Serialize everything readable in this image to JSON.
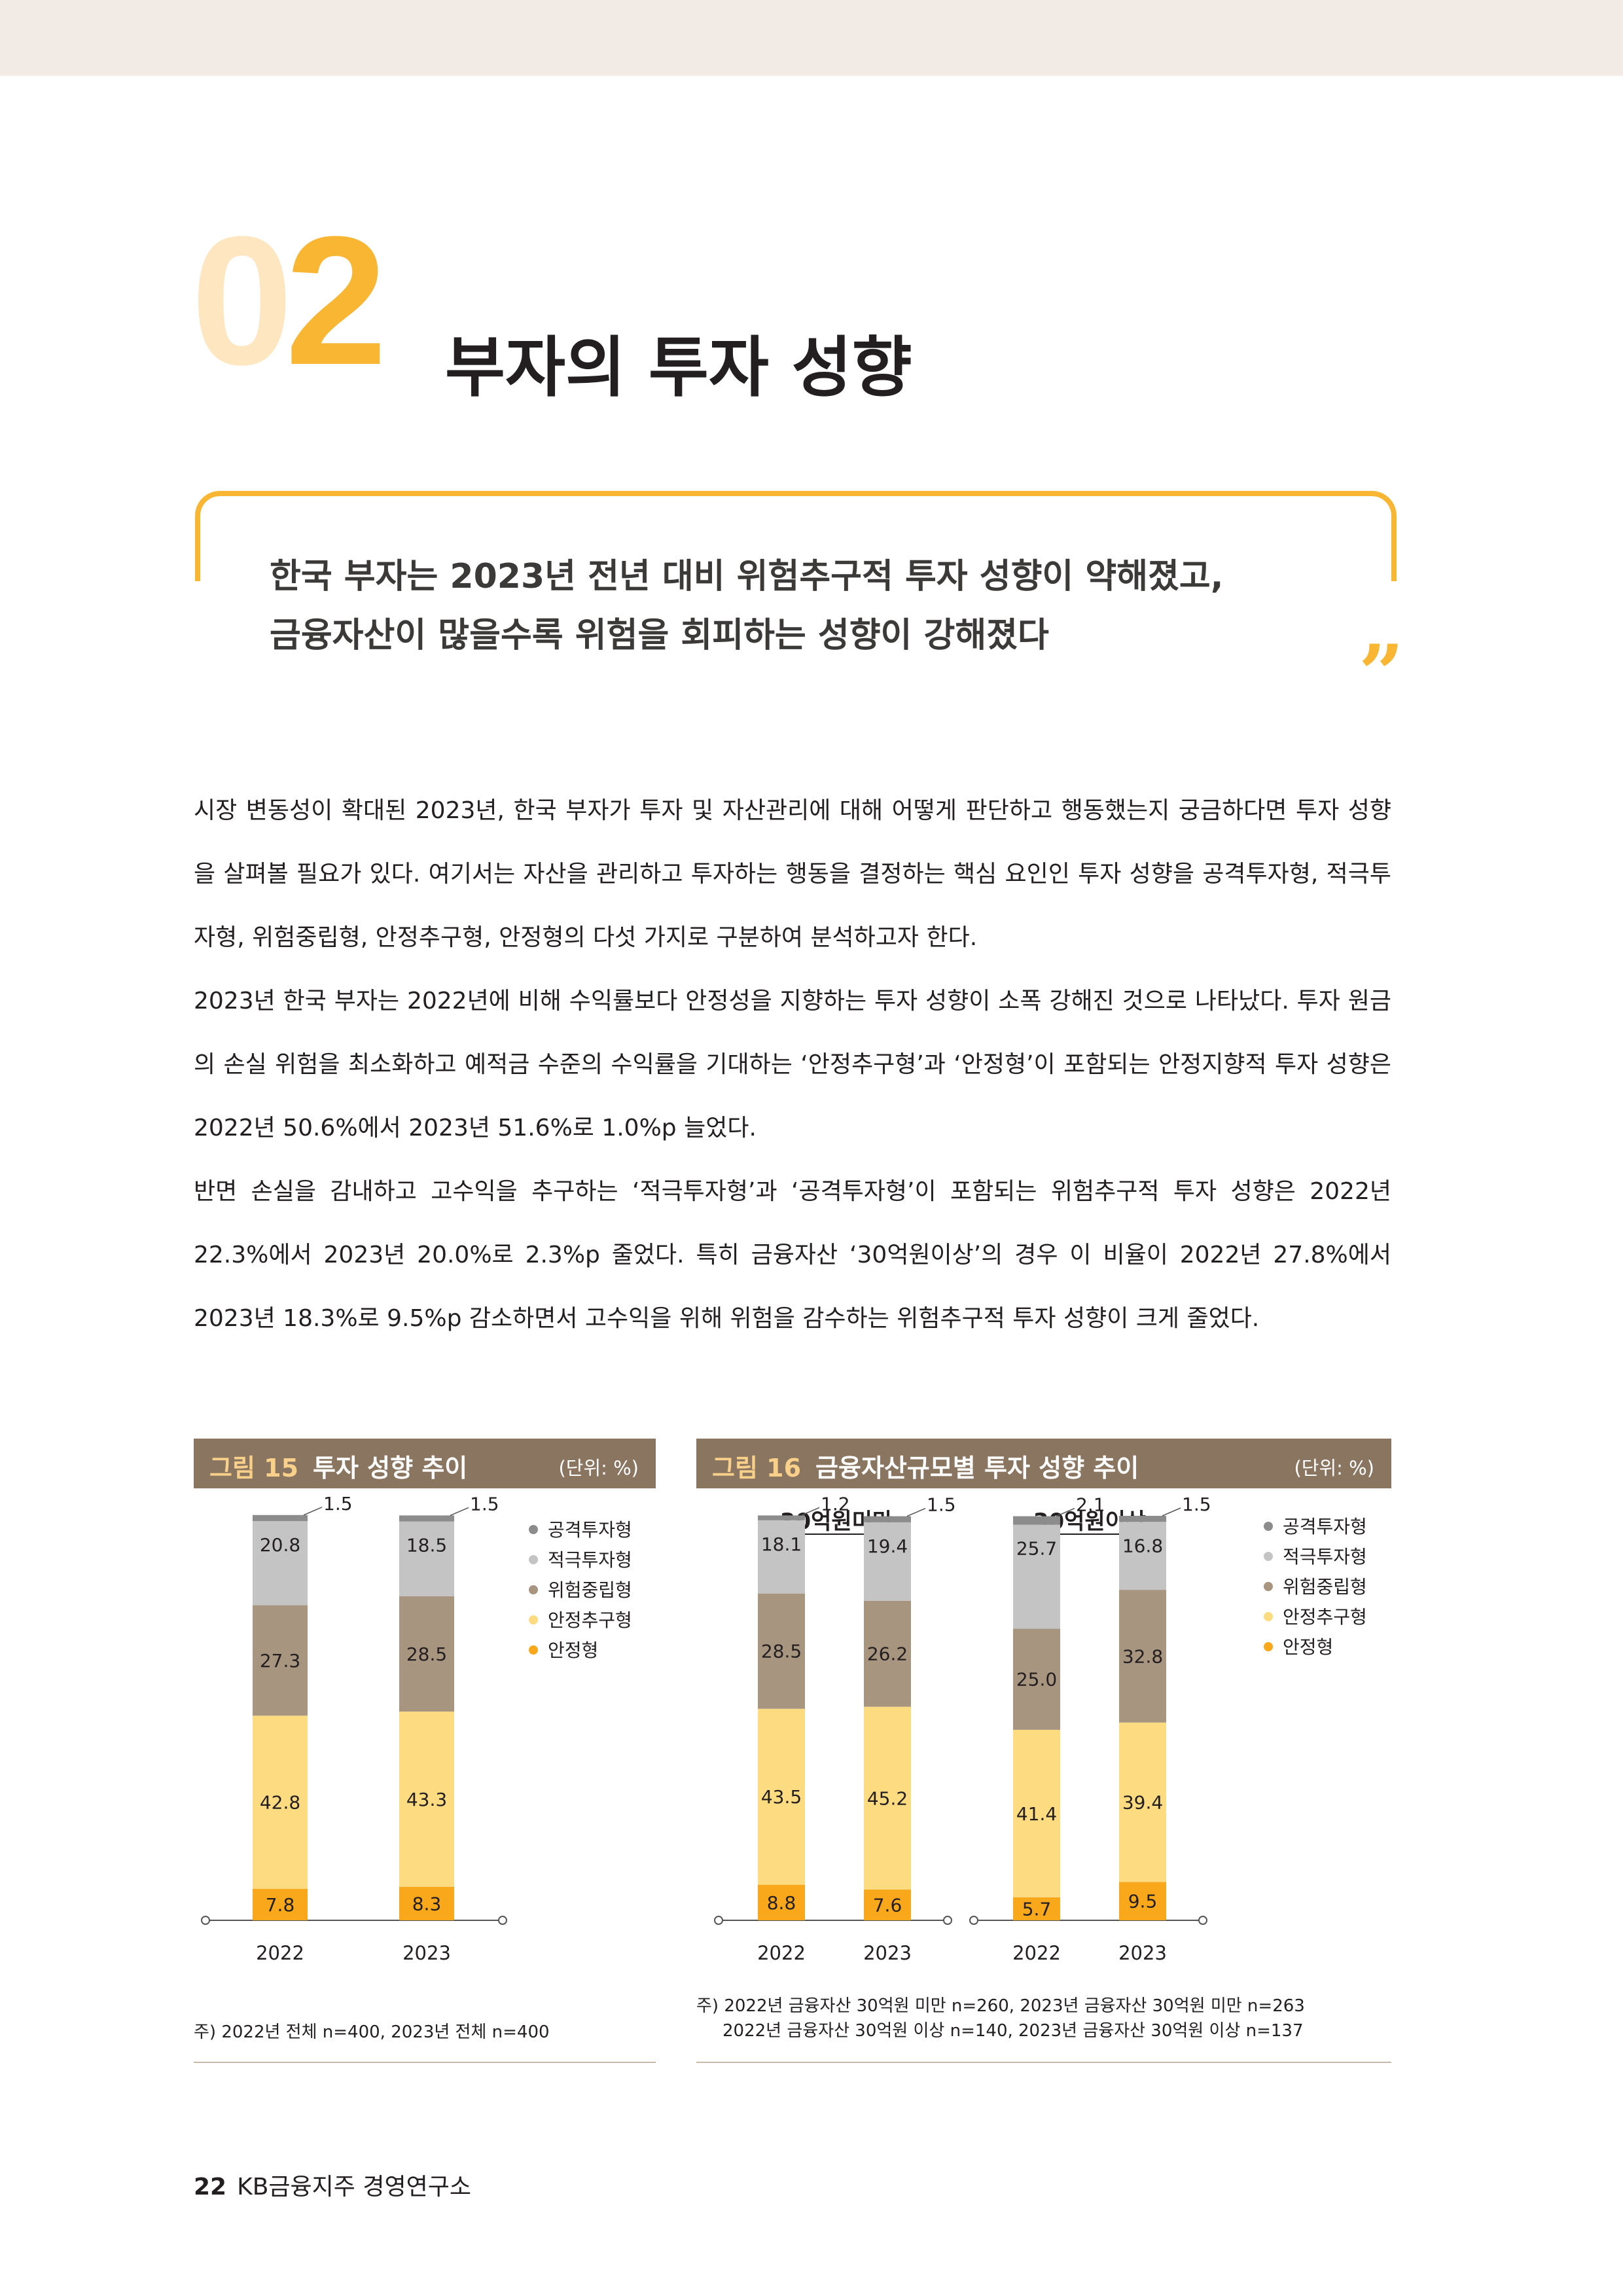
{
  "section": {
    "number_zero": "0",
    "number_two": "2",
    "title": "부자의 투자 성향"
  },
  "quote": {
    "line1": "한국 부자는 2023년 전년 대비 위험추구적 투자 성향이 약해졌고,",
    "line2": "금융자산이 많을수록 위험을 회피하는 성향이 강해졌다",
    "mark": "”"
  },
  "body": {
    "p1": "시장 변동성이 확대된 2023년, 한국 부자가 투자 및 자산관리에 대해 어떻게 판단하고 행동했는지 궁금하다면 투자 성향을 살펴볼 필요가 있다. 여기서는 자산을 관리하고 투자하는 행동을 결정하는 핵심 요인인 투자 성향을 공격투자형, 적극투자형, 위험중립형, 안정추구형, 안정형의 다섯 가지로 구분하여 분석하고자 한다.",
    "p2": "2023년 한국 부자는 2022년에 비해 수익률보다 안정성을 지향하는 투자 성향이 소폭 강해진 것으로 나타났다. 투자 원금의 손실 위험을 최소화하고 예적금 수준의 수익률을 기대하는 ‘안정추구형’과 ‘안정형’이 포함되는 안정지향적 투자 성향은 2022년 50.6%에서 2023년 51.6%로 1.0%p 늘었다.",
    "p3": "반면 손실을 감내하고 고수익을 추구하는 ‘적극투자형’과 ‘공격투자형’이 포함되는 위험추구적 투자 성향은 2022년 22.3%에서 2023년 20.0%로 2.3%p 줄었다. 특히 금융자산 ‘30억원이상’의 경우 이 비율이 2022년 27.8%에서 2023년 18.3%로 9.5%p 감소하면서 고수익을 위해 위험을 감수하는 위험추구적 투자 성향이 크게 줄었다."
  },
  "figures": {
    "fig15": {
      "label": "그림 15",
      "title": "투자 성향 추이",
      "unit": "(단위: %)",
      "note": "주) 2022년 전체 n=400, 2023년 전체 n=400"
    },
    "fig16": {
      "label": "그림 16",
      "title": "금융자산규모별 투자 성향 추이",
      "unit": "(단위: %)",
      "group1": "30억원미만",
      "group2": "30억원이상",
      "note_line1": "주) 2022년 금융자산 30억원 미만 n=260, 2023년 금융자산 30억원 미만 n=263",
      "note_line2": "2022년 금융자산 30억원 이상 n=140, 2023년 금융자산 30억원 이상 n=137"
    }
  },
  "legend": [
    {
      "name": "공격투자형",
      "color": "#8c8c8c"
    },
    {
      "name": "적극투자형",
      "color": "#c4c4c4"
    },
    {
      "name": "위험중립형",
      "color": "#a89580"
    },
    {
      "name": "안정추구형",
      "color": "#fddb80"
    },
    {
      "name": "안정형",
      "color": "#f8a81a"
    }
  ],
  "chart_data": [
    {
      "type": "bar",
      "stacked": true,
      "categories": [
        "2022",
        "2023"
      ],
      "series": [
        {
          "name": "안정형",
          "values": [
            7.8,
            8.3
          ]
        },
        {
          "name": "안정추구형",
          "values": [
            42.8,
            43.3
          ]
        },
        {
          "name": "위험중립형",
          "values": [
            27.3,
            28.5
          ]
        },
        {
          "name": "적극투자형",
          "values": [
            20.8,
            18.5
          ]
        },
        {
          "name": "공격투자형",
          "values": [
            1.5,
            1.5
          ]
        }
      ],
      "ylim": [
        0,
        100
      ]
    },
    {
      "type": "bar",
      "stacked": true,
      "groups": [
        "30억원미만",
        "30억원이상"
      ],
      "categories": [
        "2022",
        "2023",
        "2022",
        "2023"
      ],
      "series": [
        {
          "name": "안정형",
          "values": [
            8.8,
            7.6,
            5.7,
            9.5
          ]
        },
        {
          "name": "안정추구형",
          "values": [
            43.5,
            45.2,
            41.4,
            39.4
          ]
        },
        {
          "name": "위험중립형",
          "values": [
            28.5,
            26.2,
            25.0,
            32.8
          ]
        },
        {
          "name": "적극투자형",
          "values": [
            18.1,
            19.4,
            25.7,
            16.8
          ]
        },
        {
          "name": "공격투자형",
          "values": [
            1.2,
            1.5,
            2.1,
            1.5
          ]
        }
      ],
      "ylim": [
        0,
        100
      ]
    }
  ],
  "footer": {
    "page": "22",
    "org": "KB금융지주 경영연구소"
  }
}
